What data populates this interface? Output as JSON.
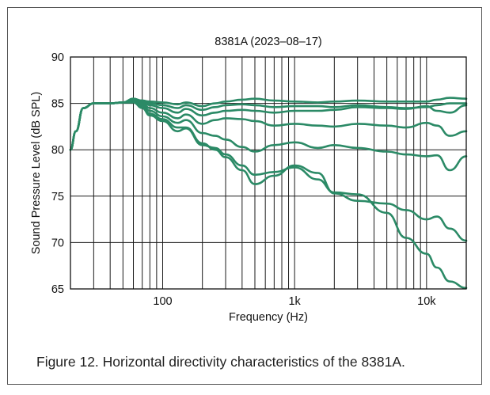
{
  "caption": "Figure 12. Horizontal directivity characteristics of the 8381A.",
  "chart_data": {
    "type": "line",
    "title": "8381A (2023–08–17)",
    "xlabel": "Frequency (Hz)",
    "ylabel": "Sound Pressure Level (dB SPL)",
    "xscale": "log",
    "xlim": [
      20,
      20000
    ],
    "ylim": [
      65,
      90
    ],
    "yticks": [
      65,
      70,
      75,
      80,
      85,
      90
    ],
    "xtick_labels": [
      {
        "value": 100,
        "label": "100"
      },
      {
        "value": 1000,
        "label": "1k"
      },
      {
        "value": 10000,
        "label": "10k"
      }
    ],
    "grid": true,
    "line_color": "#2b8a66",
    "series": [
      {
        "points": [
          [
            20,
            80
          ],
          [
            22,
            82
          ],
          [
            25,
            84.5
          ],
          [
            30,
            85
          ],
          [
            40,
            85
          ],
          [
            50,
            85.1
          ],
          [
            60,
            85.4
          ],
          [
            70,
            85.3
          ],
          [
            80,
            85.2
          ],
          [
            100,
            85.1
          ],
          [
            130,
            84.9
          ],
          [
            150,
            85.1
          ],
          [
            200,
            84.7
          ],
          [
            250,
            85
          ],
          [
            300,
            85.2
          ],
          [
            400,
            85.4
          ],
          [
            500,
            85.5
          ],
          [
            700,
            85.3
          ],
          [
            1000,
            85.2
          ],
          [
            1500,
            85.1
          ],
          [
            2000,
            85.2
          ],
          [
            3000,
            85.3
          ],
          [
            5000,
            85.2
          ],
          [
            7000,
            85.2
          ],
          [
            10000,
            85.2
          ],
          [
            12000,
            85.4
          ],
          [
            15000,
            85.6
          ],
          [
            20000,
            85.5
          ]
        ]
      },
      {
        "points": [
          [
            20,
            80
          ],
          [
            22,
            82
          ],
          [
            25,
            84.5
          ],
          [
            30,
            85
          ],
          [
            40,
            85
          ],
          [
            50,
            85.1
          ],
          [
            60,
            85.5
          ],
          [
            70,
            85.3
          ],
          [
            80,
            85
          ],
          [
            100,
            84.8
          ],
          [
            130,
            84.5
          ],
          [
            150,
            84.8
          ],
          [
            200,
            84.3
          ],
          [
            250,
            84.6
          ],
          [
            300,
            84.8
          ],
          [
            400,
            84.9
          ],
          [
            500,
            84.8
          ],
          [
            700,
            84.6
          ],
          [
            1000,
            84.7
          ],
          [
            1500,
            84.7
          ],
          [
            2000,
            84.6
          ],
          [
            3000,
            84.8
          ],
          [
            5000,
            84.6
          ],
          [
            7000,
            84.5
          ],
          [
            10000,
            84.6
          ],
          [
            12000,
            84.8
          ],
          [
            15000,
            85
          ],
          [
            20000,
            85
          ]
        ]
      },
      {
        "points": [
          [
            20,
            80
          ],
          [
            22,
            82
          ],
          [
            25,
            84.5
          ],
          [
            30,
            85
          ],
          [
            40,
            85
          ],
          [
            50,
            85.1
          ],
          [
            60,
            85.5
          ],
          [
            70,
            85.2
          ],
          [
            80,
            84.8
          ],
          [
            100,
            84.5
          ],
          [
            130,
            84
          ],
          [
            150,
            84.4
          ],
          [
            200,
            83.7
          ],
          [
            250,
            84
          ],
          [
            300,
            84.2
          ],
          [
            400,
            84.3
          ],
          [
            500,
            84.2
          ],
          [
            700,
            84
          ],
          [
            1000,
            84.2
          ],
          [
            1500,
            84.2
          ],
          [
            2000,
            84.3
          ],
          [
            3000,
            84.6
          ],
          [
            5000,
            84.5
          ],
          [
            7000,
            84.4
          ],
          [
            10000,
            84.7
          ],
          [
            12000,
            84.2
          ],
          [
            15000,
            84
          ],
          [
            20000,
            84.8
          ]
        ]
      },
      {
        "points": [
          [
            20,
            80
          ],
          [
            22,
            82
          ],
          [
            25,
            84.5
          ],
          [
            30,
            85
          ],
          [
            40,
            85
          ],
          [
            50,
            85.1
          ],
          [
            60,
            85.4
          ],
          [
            70,
            85
          ],
          [
            80,
            84.5
          ],
          [
            100,
            84
          ],
          [
            130,
            83.4
          ],
          [
            150,
            83.8
          ],
          [
            200,
            82.8
          ],
          [
            250,
            83.2
          ],
          [
            300,
            83.4
          ],
          [
            400,
            83.3
          ],
          [
            500,
            83.1
          ],
          [
            700,
            82.6
          ],
          [
            1000,
            82.8
          ],
          [
            1500,
            82.6
          ],
          [
            2000,
            82.5
          ],
          [
            3000,
            82.8
          ],
          [
            5000,
            82.6
          ],
          [
            7000,
            82.4
          ],
          [
            10000,
            82.9
          ],
          [
            12000,
            82.6
          ],
          [
            15000,
            81.5
          ],
          [
            20000,
            82
          ]
        ]
      },
      {
        "points": [
          [
            20,
            80
          ],
          [
            22,
            82
          ],
          [
            25,
            84.5
          ],
          [
            30,
            85
          ],
          [
            40,
            85
          ],
          [
            50,
            85.1
          ],
          [
            60,
            85.3
          ],
          [
            70,
            84.8
          ],
          [
            80,
            84.2
          ],
          [
            100,
            83.6
          ],
          [
            130,
            82.9
          ],
          [
            150,
            83.2
          ],
          [
            200,
            81.8
          ],
          [
            250,
            81.5
          ],
          [
            300,
            81.1
          ],
          [
            400,
            80.3
          ],
          [
            500,
            79.8
          ],
          [
            700,
            80.5
          ],
          [
            1000,
            80.8
          ],
          [
            1500,
            80.2
          ],
          [
            2000,
            80.5
          ],
          [
            3000,
            80.2
          ],
          [
            5000,
            79.8
          ],
          [
            7000,
            79.5
          ],
          [
            10000,
            79.3
          ],
          [
            12000,
            79.4
          ],
          [
            15000,
            77.8
          ],
          [
            20000,
            79.3
          ]
        ]
      },
      {
        "points": [
          [
            20,
            80
          ],
          [
            22,
            82
          ],
          [
            25,
            84.5
          ],
          [
            30,
            85
          ],
          [
            40,
            85
          ],
          [
            50,
            85.1
          ],
          [
            60,
            85.2
          ],
          [
            70,
            84.6
          ],
          [
            80,
            83.9
          ],
          [
            100,
            83.3
          ],
          [
            130,
            82.4
          ],
          [
            150,
            82.4
          ],
          [
            200,
            80.7
          ],
          [
            250,
            80
          ],
          [
            300,
            79.2
          ],
          [
            400,
            77.8
          ],
          [
            500,
            76.3
          ],
          [
            700,
            77.2
          ],
          [
            1000,
            78.3
          ],
          [
            1500,
            77.5
          ],
          [
            2000,
            75.3
          ],
          [
            3000,
            74.5
          ],
          [
            5000,
            74.2
          ],
          [
            7000,
            73.5
          ],
          [
            10000,
            72.5
          ],
          [
            12000,
            72.8
          ],
          [
            15000,
            71.5
          ],
          [
            20000,
            70.2
          ]
        ]
      },
      {
        "points": [
          [
            20,
            80
          ],
          [
            22,
            82
          ],
          [
            25,
            84.5
          ],
          [
            30,
            85
          ],
          [
            40,
            85
          ],
          [
            50,
            85.1
          ],
          [
            60,
            85.1
          ],
          [
            70,
            84.5
          ],
          [
            80,
            83.7
          ],
          [
            100,
            83.1
          ],
          [
            130,
            82
          ],
          [
            150,
            82.3
          ],
          [
            200,
            80.5
          ],
          [
            250,
            80.2
          ],
          [
            300,
            79.5
          ],
          [
            400,
            78.3
          ],
          [
            500,
            77.3
          ],
          [
            700,
            77.6
          ],
          [
            1000,
            78.1
          ],
          [
            1500,
            76.8
          ],
          [
            2000,
            75.4
          ],
          [
            3000,
            75.2
          ],
          [
            5000,
            73.2
          ],
          [
            7000,
            70.5
          ],
          [
            10000,
            68.8
          ],
          [
            12000,
            67.3
          ],
          [
            15000,
            65.8
          ],
          [
            20000,
            65.1
          ]
        ]
      }
    ]
  }
}
